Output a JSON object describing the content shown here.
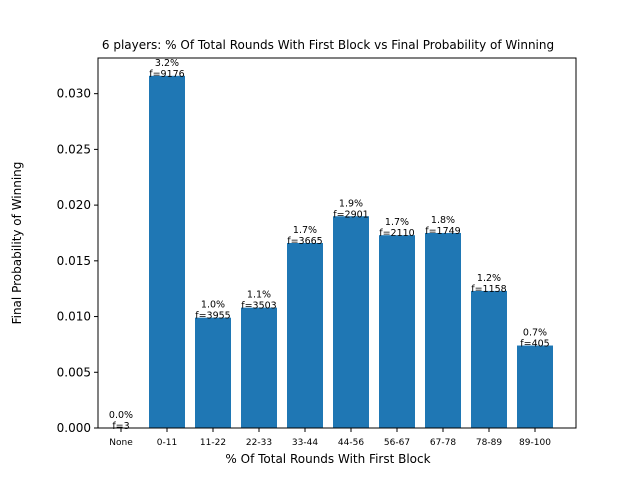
{
  "chart_data": {
    "type": "bar",
    "title": "6 players: % Of Total Rounds With First Block vs Final Probability of Winning",
    "xlabel": "% Of Total Rounds With First Block",
    "ylabel": "Final Probability of Winning",
    "categories": [
      "None",
      "0-11",
      "11-22",
      "22-33",
      "33-44",
      "44-56",
      "56-67",
      "67-78",
      "78-89",
      "89-100"
    ],
    "values": [
      0.0,
      0.0316,
      0.0099,
      0.0108,
      0.0166,
      0.019,
      0.0173,
      0.0175,
      0.0123,
      0.0074
    ],
    "bar_labels": [
      {
        "pct": "0.0%",
        "freq": "f=3"
      },
      {
        "pct": "3.2%",
        "freq": "f=9176"
      },
      {
        "pct": "1.0%",
        "freq": "f=3955"
      },
      {
        "pct": "1.1%",
        "freq": "f=3503"
      },
      {
        "pct": "1.7%",
        "freq": "f=3665"
      },
      {
        "pct": "1.9%",
        "freq": "f=2901"
      },
      {
        "pct": "1.7%",
        "freq": "f=2110"
      },
      {
        "pct": "1.8%",
        "freq": "f=1749"
      },
      {
        "pct": "1.2%",
        "freq": "f=1158"
      },
      {
        "pct": "0.7%",
        "freq": "f=405"
      }
    ],
    "yticks": [
      "0.000",
      "0.005",
      "0.010",
      "0.015",
      "0.020",
      "0.025",
      "0.030"
    ],
    "ylim": [
      0,
      0.0332
    ],
    "grid": false,
    "bar_color": "#1f77b4"
  }
}
